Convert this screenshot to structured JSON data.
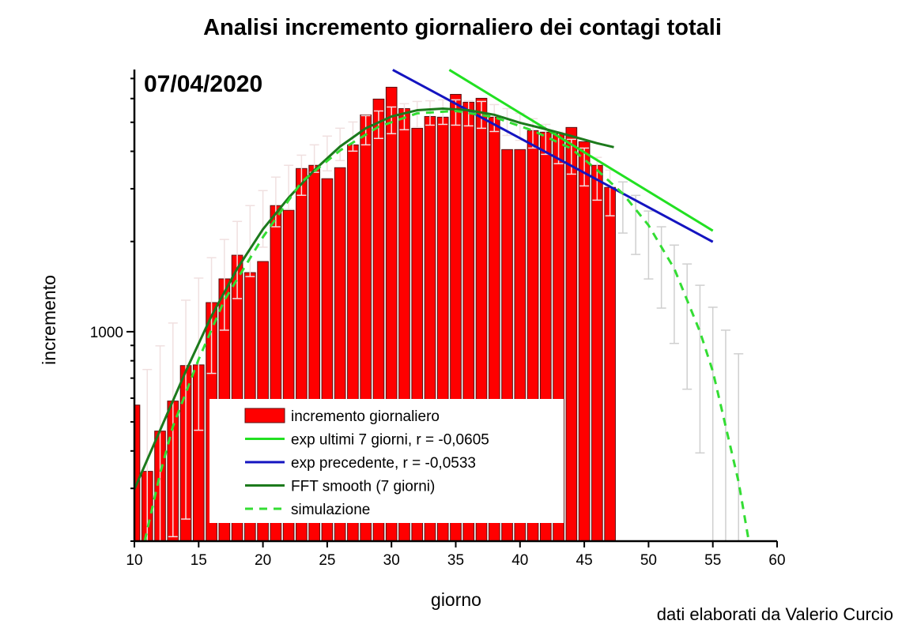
{
  "chart_data": {
    "type": "bar",
    "title": "Analisi incremento giornaliero dei contagi totali",
    "date_label": "07/04/2020",
    "xlabel": "giorno",
    "ylabel": "incremento",
    "credit": "dati elaborati da Valerio Curcio",
    "xlim": [
      10,
      60
    ],
    "ylim": [
      200,
      7500
    ],
    "yscale": "log",
    "x_ticks": [
      "10",
      "15",
      "20",
      "25",
      "30",
      "35",
      "40",
      "45",
      "50",
      "55",
      "60"
    ],
    "y_ticks": [
      {
        "value": 1000,
        "label": "1000"
      }
    ],
    "legend_placement": "bottom-center",
    "legend": [
      {
        "label": "incremento giornaliero",
        "kind": "bar",
        "color": "#ff0000"
      },
      {
        "label": "exp ultimi 7 giorni, r = -0,0605",
        "kind": "line",
        "color": "#22e022"
      },
      {
        "label": "exp precedente, r = -0,0533",
        "kind": "line",
        "color": "#1414c0"
      },
      {
        "label": "FFT smooth (7 giorni)",
        "kind": "line",
        "color": "#1c7a1c"
      },
      {
        "label": "simulazione",
        "kind": "dashed",
        "color": "#33dd33"
      }
    ],
    "bars": {
      "name": "incremento giornaliero",
      "x": [
        10,
        11,
        12,
        13,
        14,
        15,
        16,
        17,
        18,
        19,
        20,
        21,
        22,
        23,
        24,
        25,
        26,
        27,
        28,
        29,
        30,
        31,
        32,
        33,
        34,
        35,
        36,
        37,
        38,
        39,
        40,
        41,
        42,
        43,
        44,
        45,
        46,
        47
      ],
      "values": [
        569,
        342,
        466,
        587,
        771,
        775,
        1251,
        1501,
        1800,
        1575,
        1715,
        2636,
        2543,
        3505,
        3592,
        3241,
        3527,
        4203,
        5292,
        5976,
        6546,
        5555,
        4775,
        5228,
        5200,
        6196,
        5833,
        6012,
        5200,
        4054,
        4054,
        4690,
        4634,
        4577,
        4805,
        4306,
        3592,
        3031
      ]
    },
    "error_bars": {
      "x": [
        11,
        12,
        13,
        14,
        15,
        16,
        17,
        18,
        19,
        20,
        21,
        22,
        23,
        24,
        25,
        26,
        27,
        28,
        29,
        30,
        31,
        32,
        33,
        34,
        35,
        36,
        37,
        38,
        39,
        40,
        41,
        42,
        43,
        44,
        45,
        46,
        47,
        48,
        49,
        50,
        51,
        52,
        53,
        54,
        55,
        56,
        57
      ],
      "high": [
        748,
        897,
        1069,
        1274,
        1510,
        1766,
        2032,
        2334,
        2636,
        2958,
        3281,
        3592,
        3884,
        4204,
        4497,
        4777,
        5012,
        5262,
        5454,
        5623,
        5768,
        5869,
        5899,
        5942,
        5942,
        5899,
        5869,
        5728,
        5555,
        5358,
        5140,
        4920,
        4634,
        4386,
        4101,
        3819,
        3461,
        3162,
        2851,
        2528,
        2240,
        1946,
        1683,
        1429,
        1207,
        1012,
        844
      ],
      "low": [
        200,
        200,
        207,
        237,
        469,
        726,
        1012,
        1290,
        1528,
        1915,
        2240,
        2560,
        2853,
        3404,
        3443,
        3726,
        4006,
        4204,
        4416,
        4581,
        4722,
        4808,
        4891,
        4920,
        4891,
        4864,
        4775,
        4658,
        4519,
        4355,
        4101,
        3908,
        3637,
        3357,
        3066,
        2748,
        2437,
        2134,
        1811,
        1500,
        1199,
        914,
        643,
        394,
        200,
        200,
        200
      ]
    },
    "series": [
      {
        "name": "exp ultimi 7 giorni, r = -0,0605",
        "color": "#22e022",
        "style": "solid",
        "x": [
          34.5,
          55
        ],
        "y": [
          7480,
          2173
        ]
      },
      {
        "name": "exp precedente, r = -0,0533",
        "color": "#1414c0",
        "style": "solid",
        "x": [
          30.1,
          55
        ],
        "y": [
          7480,
          1995
        ]
      },
      {
        "name": "FFT smooth (7 giorni)",
        "color": "#1c7a1c",
        "style": "solid",
        "x": [
          10,
          12,
          14,
          16,
          18,
          20,
          22,
          24,
          26,
          28,
          30,
          32,
          34,
          36,
          38,
          40,
          42,
          44,
          46,
          47.3
        ],
        "y": [
          298,
          469,
          738,
          1129,
          1624,
          2198,
          2800,
          3461,
          4150,
          4775,
          5228,
          5485,
          5555,
          5485,
          5296,
          4980,
          4742,
          4497,
          4256,
          4130
        ]
      },
      {
        "name": "simulazione",
        "color": "#33dd33",
        "style": "dashed",
        "x": [
          10.8,
          12,
          13,
          15,
          17,
          20,
          23,
          26,
          29,
          32,
          35,
          38,
          41,
          44,
          46,
          48,
          50,
          52,
          54,
          55,
          56,
          57,
          57.8
        ],
        "y": [
          200,
          336,
          483,
          809,
          1274,
          2069,
          3162,
          4027,
          4831,
          5358,
          5454,
          5200,
          4690,
          4083,
          3461,
          2890,
          2265,
          1624,
          1000,
          738,
          483,
          316,
          200
        ]
      }
    ]
  }
}
